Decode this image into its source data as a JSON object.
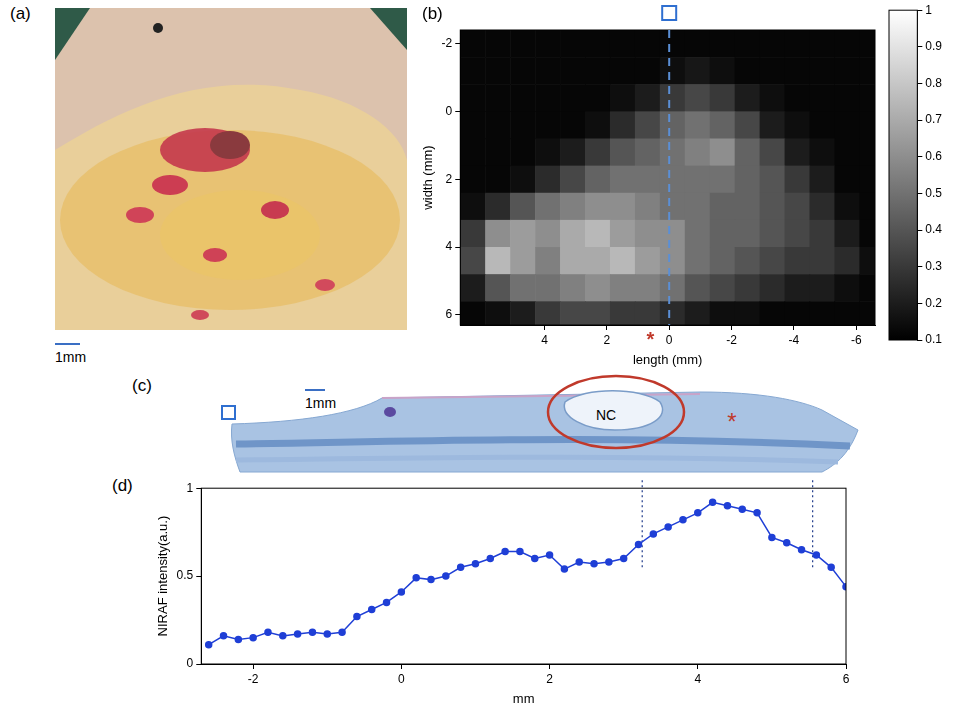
{
  "panels": {
    "a": {
      "panel": "(a)",
      "scale_bar": "1mm"
    },
    "c": {
      "panel": "(c)",
      "scale_bar": "1mm",
      "labels": [
        "NC",
        "*"
      ]
    }
  },
  "chart_data": [
    {
      "type": "heatmap",
      "panel": "(b)",
      "x_label": "length (mm)",
      "y_label": "width (mm)",
      "x": [
        6.3,
        5.5,
        4.7,
        3.9,
        3.1,
        2.3,
        1.5,
        0.7,
        -0.1,
        -0.9,
        -1.7,
        -2.5,
        -3.3,
        -4.1,
        -4.9,
        -5.7,
        -6.5
      ],
      "y": [
        -2.0,
        -1.2,
        -0.4,
        0.4,
        1.2,
        2.0,
        2.8,
        3.6,
        4.4,
        5.2,
        6.0
      ],
      "cells": [
        [
          0.12,
          0.12,
          0.12,
          0.12,
          0.12,
          0.12,
          0.12,
          0.12,
          0.12,
          0.12,
          0.12,
          0.12,
          0.12,
          0.12,
          0.12,
          0.12,
          0.12
        ],
        [
          0.12,
          0.12,
          0.12,
          0.12,
          0.12,
          0.12,
          0.12,
          0.12,
          0.15,
          0.18,
          0.15,
          0.12,
          0.12,
          0.12,
          0.12,
          0.12,
          0.12
        ],
        [
          0.12,
          0.12,
          0.12,
          0.12,
          0.12,
          0.12,
          0.15,
          0.2,
          0.3,
          0.35,
          0.3,
          0.2,
          0.15,
          0.12,
          0.12,
          0.12,
          0.12
        ],
        [
          0.12,
          0.12,
          0.12,
          0.12,
          0.12,
          0.15,
          0.25,
          0.35,
          0.45,
          0.5,
          0.45,
          0.35,
          0.2,
          0.15,
          0.12,
          0.12,
          0.12
        ],
        [
          0.12,
          0.12,
          0.12,
          0.15,
          0.2,
          0.3,
          0.4,
          0.45,
          0.5,
          0.55,
          0.6,
          0.45,
          0.35,
          0.2,
          0.15,
          0.12,
          0.12
        ],
        [
          0.12,
          0.12,
          0.15,
          0.25,
          0.35,
          0.45,
          0.5,
          0.5,
          0.5,
          0.5,
          0.5,
          0.45,
          0.4,
          0.3,
          0.2,
          0.12,
          0.12
        ],
        [
          0.15,
          0.25,
          0.4,
          0.5,
          0.55,
          0.6,
          0.6,
          0.55,
          0.5,
          0.5,
          0.45,
          0.45,
          0.4,
          0.35,
          0.25,
          0.15,
          0.12
        ],
        [
          0.3,
          0.6,
          0.65,
          0.6,
          0.7,
          0.75,
          0.65,
          0.6,
          0.6,
          0.5,
          0.45,
          0.45,
          0.4,
          0.35,
          0.3,
          0.2,
          0.12
        ],
        [
          0.35,
          0.75,
          0.65,
          0.55,
          0.7,
          0.7,
          0.75,
          0.65,
          0.6,
          0.5,
          0.45,
          0.4,
          0.35,
          0.3,
          0.3,
          0.25,
          0.15
        ],
        [
          0.2,
          0.4,
          0.5,
          0.5,
          0.55,
          0.6,
          0.55,
          0.55,
          0.5,
          0.4,
          0.35,
          0.3,
          0.25,
          0.2,
          0.2,
          0.15,
          0.12
        ],
        [
          0.12,
          0.15,
          0.2,
          0.3,
          0.35,
          0.35,
          0.3,
          0.3,
          0.25,
          0.2,
          0.15,
          0.15,
          0.12,
          0.12,
          0.12,
          0.12,
          0.12
        ]
      ],
      "xlim": [
        6.7,
        -6.6
      ],
      "ylim": [
        6.3,
        -2.4
      ],
      "xticks": [
        4,
        2,
        0,
        -2,
        -4,
        -6
      ],
      "yticks": [
        -2,
        0,
        2,
        4,
        6
      ],
      "grid": false,
      "cut_x": 0,
      "annotations": [
        {
          "text": "*",
          "x": 0.6
        }
      ],
      "colorbar": {
        "range": [
          0.1,
          1
        ],
        "ticks": [
          0.1,
          0.2,
          0.3,
          0.4,
          0.5,
          0.6,
          0.7,
          0.8,
          0.9,
          1
        ]
      }
    },
    {
      "type": "line",
      "panel": "(d)",
      "x_label": "mm",
      "y_label": "NIRAF intensity(a.u.)",
      "x": [
        -2.6,
        -2.4,
        -2.2,
        -2.0,
        -1.8,
        -1.6,
        -1.4,
        -1.2,
        -1.0,
        -0.8,
        -0.6,
        -0.4,
        -0.2,
        0.0,
        0.2,
        0.4,
        0.6,
        0.8,
        1.0,
        1.2,
        1.4,
        1.6,
        1.8,
        2.0,
        2.2,
        2.4,
        2.6,
        2.8,
        3.0,
        3.2,
        3.4,
        3.6,
        3.8,
        4.0,
        4.2,
        4.4,
        4.6,
        4.8,
        5.0,
        5.2,
        5.4,
        5.6,
        5.8,
        6.0
      ],
      "values": [
        0.11,
        0.16,
        0.14,
        0.15,
        0.18,
        0.16,
        0.17,
        0.18,
        0.17,
        0.18,
        0.27,
        0.31,
        0.35,
        0.41,
        0.49,
        0.48,
        0.5,
        0.55,
        0.57,
        0.6,
        0.64,
        0.64,
        0.6,
        0.62,
        0.54,
        0.58,
        0.57,
        0.58,
        0.6,
        0.68,
        0.74,
        0.78,
        0.82,
        0.86,
        0.92,
        0.9,
        0.88,
        0.86,
        0.72,
        0.69,
        0.65,
        0.62,
        0.55,
        0.44
      ],
      "xlim": [
        -2.7,
        6
      ],
      "ylim": [
        0,
        1
      ],
      "xticks": [
        -2,
        0,
        2,
        4,
        6
      ],
      "yticks": [
        0,
        0.5,
        1
      ],
      "grid": false,
      "color": "#1f3fd6",
      "marker": "circle",
      "region_lines": [
        3.25,
        5.55
      ],
      "region_lines_from": 0.55
    }
  ]
}
